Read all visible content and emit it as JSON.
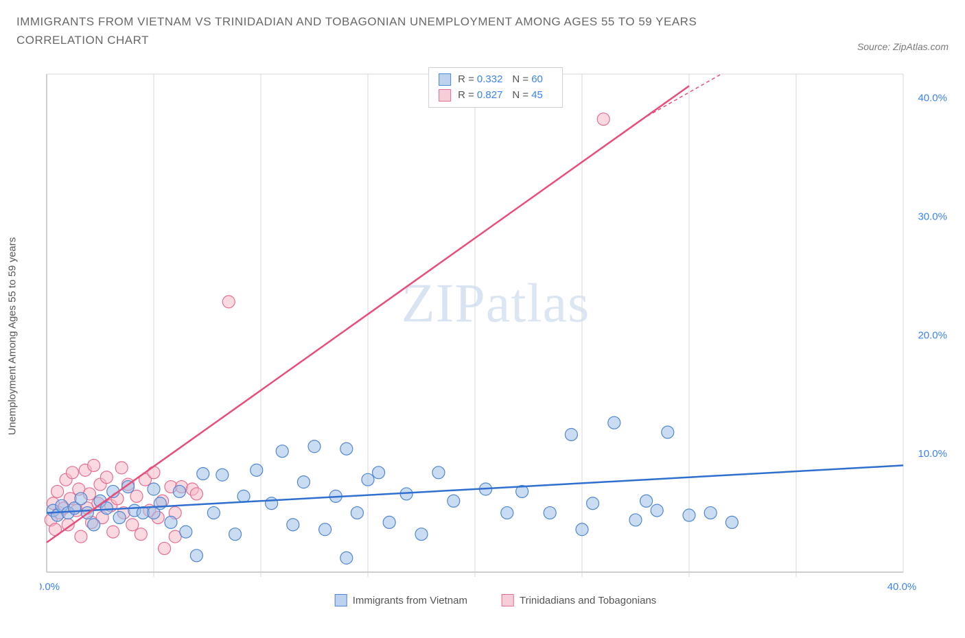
{
  "title": "IMMIGRANTS FROM VIETNAM VS TRINIDADIAN AND TOBAGONIAN UNEMPLOYMENT AMONG AGES 55 TO 59 YEARS CORRELATION CHART",
  "source_label": "Source: ZipAtlas.com",
  "y_axis_label": "Unemployment Among Ages 55 to 59 years",
  "watermark_bold": "ZIP",
  "watermark_light": "atlas",
  "chart": {
    "type": "scatter",
    "xlim": [
      0,
      40
    ],
    "ylim": [
      0,
      42
    ],
    "background_color": "#ffffff",
    "grid_color": "#d9d9d9",
    "marker_radius": 9,
    "x_ticks": [
      0,
      40
    ],
    "x_tick_labels": [
      "0.0%",
      "40.0%"
    ],
    "x_minor_ticks": [
      5,
      10,
      15,
      20,
      25,
      30,
      35
    ],
    "y_ticks": [
      10,
      20,
      30,
      40
    ],
    "y_tick_labels": [
      "10.0%",
      "20.0%",
      "30.0%",
      "40.0%"
    ],
    "series": [
      {
        "name": "Immigrants from Vietnam",
        "color_fill": "#9fbfe8",
        "color_stroke": "#4f86d1",
        "R": "0.332",
        "N": "60",
        "trend": {
          "x1": 0,
          "y1": 5.0,
          "x2": 40,
          "y2": 9.0,
          "color": "#2f6fcf"
        },
        "points": [
          [
            0.3,
            5.2
          ],
          [
            0.5,
            4.8
          ],
          [
            0.7,
            5.6
          ],
          [
            1.0,
            5.0
          ],
          [
            1.3,
            5.4
          ],
          [
            1.6,
            6.2
          ],
          [
            1.9,
            5.0
          ],
          [
            2.2,
            4.0
          ],
          [
            2.5,
            6.0
          ],
          [
            2.8,
            5.4
          ],
          [
            3.1,
            6.8
          ],
          [
            3.4,
            4.6
          ],
          [
            3.8,
            7.2
          ],
          [
            4.1,
            5.2
          ],
          [
            4.5,
            5.0
          ],
          [
            5.0,
            7.0
          ],
          [
            5.0,
            5.0
          ],
          [
            5.3,
            5.8
          ],
          [
            5.8,
            4.2
          ],
          [
            6.2,
            6.8
          ],
          [
            6.5,
            3.4
          ],
          [
            7.0,
            1.4
          ],
          [
            7.3,
            8.3
          ],
          [
            7.8,
            5.0
          ],
          [
            8.2,
            8.2
          ],
          [
            8.8,
            3.2
          ],
          [
            9.2,
            6.4
          ],
          [
            9.8,
            8.6
          ],
          [
            10.5,
            5.8
          ],
          [
            11.0,
            10.2
          ],
          [
            11.5,
            4.0
          ],
          [
            12.0,
            7.6
          ],
          [
            12.5,
            10.6
          ],
          [
            13.0,
            3.6
          ],
          [
            13.5,
            6.4
          ],
          [
            14.0,
            10.4
          ],
          [
            14.0,
            1.2
          ],
          [
            14.5,
            5.0
          ],
          [
            15.0,
            7.8
          ],
          [
            15.5,
            8.4
          ],
          [
            16.0,
            4.2
          ],
          [
            16.8,
            6.6
          ],
          [
            17.5,
            3.2
          ],
          [
            18.3,
            8.4
          ],
          [
            19.0,
            6.0
          ],
          [
            20.5,
            7.0
          ],
          [
            21.5,
            5.0
          ],
          [
            22.2,
            6.8
          ],
          [
            23.5,
            5.0
          ],
          [
            24.5,
            11.6
          ],
          [
            25.0,
            3.6
          ],
          [
            25.5,
            5.8
          ],
          [
            26.5,
            12.6
          ],
          [
            27.5,
            4.4
          ],
          [
            28.0,
            6.0
          ],
          [
            29.0,
            11.8
          ],
          [
            30.0,
            4.8
          ],
          [
            31.0,
            5.0
          ],
          [
            32.0,
            4.2
          ],
          [
            28.5,
            5.2
          ]
        ]
      },
      {
        "name": "Trinidadians and Tobagonians",
        "color_fill": "#f6b9c8",
        "color_stroke": "#e76d90",
        "R": "0.827",
        "N": "45",
        "trend": {
          "x1": 0,
          "y1": 2.5,
          "x2": 30,
          "y2": 41.0,
          "color": "#e94d7a"
        },
        "trend_dash": {
          "x1": 27.8,
          "y1": 38.2,
          "x2": 31.5,
          "y2": 42.0
        },
        "points": [
          [
            0.2,
            4.4
          ],
          [
            0.3,
            5.8
          ],
          [
            0.4,
            3.6
          ],
          [
            0.5,
            6.8
          ],
          [
            0.6,
            5.0
          ],
          [
            0.8,
            5.4
          ],
          [
            0.9,
            7.8
          ],
          [
            1.0,
            4.0
          ],
          [
            1.1,
            6.2
          ],
          [
            1.2,
            8.4
          ],
          [
            1.4,
            5.2
          ],
          [
            1.5,
            7.0
          ],
          [
            1.6,
            3.0
          ],
          [
            1.8,
            8.6
          ],
          [
            1.9,
            5.4
          ],
          [
            2.0,
            6.6
          ],
          [
            2.1,
            4.2
          ],
          [
            2.2,
            9.0
          ],
          [
            2.4,
            5.8
          ],
          [
            2.5,
            7.4
          ],
          [
            2.6,
            4.6
          ],
          [
            2.8,
            8.0
          ],
          [
            3.0,
            5.6
          ],
          [
            3.1,
            3.4
          ],
          [
            3.3,
            6.2
          ],
          [
            3.5,
            8.8
          ],
          [
            3.6,
            5.0
          ],
          [
            3.8,
            7.4
          ],
          [
            4.0,
            4.0
          ],
          [
            4.2,
            6.4
          ],
          [
            4.4,
            3.2
          ],
          [
            4.6,
            7.8
          ],
          [
            4.8,
            5.2
          ],
          [
            5.0,
            8.4
          ],
          [
            5.2,
            4.6
          ],
          [
            5.4,
            6.0
          ],
          [
            5.5,
            2.0
          ],
          [
            5.8,
            7.2
          ],
          [
            6.0,
            5.0
          ],
          [
            6.3,
            7.2
          ],
          [
            6.8,
            7.0
          ],
          [
            6.0,
            3.0
          ],
          [
            7.0,
            6.6
          ],
          [
            8.5,
            22.8
          ],
          [
            26.0,
            38.2
          ]
        ]
      }
    ]
  },
  "legend_top": [
    {
      "swatch": "blue",
      "r_label": "R =",
      "r_val": "0.332",
      "n_label": "N =",
      "n_val": "60"
    },
    {
      "swatch": "pink",
      "r_label": "R =",
      "r_val": "0.827",
      "n_label": "N =",
      "n_val": "45"
    }
  ],
  "legend_bottom": [
    {
      "swatch": "blue",
      "label": "Immigrants from Vietnam"
    },
    {
      "swatch": "pink",
      "label": "Trinidadians and Tobagonians"
    }
  ]
}
